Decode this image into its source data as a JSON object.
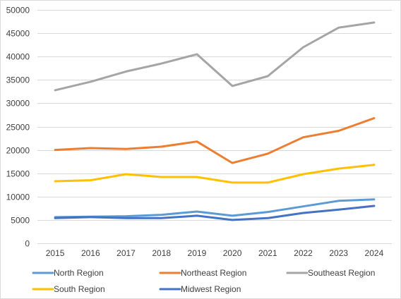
{
  "chart_data": {
    "type": "line",
    "title": "",
    "xlabel": "",
    "ylabel": "",
    "categories": [
      "2015",
      "2016",
      "2017",
      "2018",
      "2019",
      "2020",
      "2021",
      "2022",
      "2023",
      "2024"
    ],
    "ylim": [
      0,
      50000
    ],
    "yticks": [
      0,
      5000,
      10000,
      15000,
      20000,
      25000,
      30000,
      35000,
      40000,
      45000,
      50000
    ],
    "grid": true,
    "legend_position": "bottom",
    "series": [
      {
        "name": "North Region",
        "color": "#5b9bd5",
        "values": [
          5600,
          5700,
          5800,
          6100,
          6800,
          5900,
          6700,
          7900,
          9100,
          9400
        ]
      },
      {
        "name": "Northeast Region",
        "color": "#ed7d31",
        "values": [
          20000,
          20400,
          20200,
          20700,
          21800,
          17200,
          19200,
          22700,
          24100,
          26800
        ]
      },
      {
        "name": "Southeast Region",
        "color": "#a5a5a5",
        "values": [
          32800,
          34600,
          36800,
          38500,
          40500,
          33700,
          35800,
          42000,
          46200,
          47300
        ]
      },
      {
        "name": "South Region",
        "color": "#ffc000",
        "values": [
          13300,
          13500,
          14800,
          14200,
          14200,
          13000,
          13000,
          14800,
          16000,
          16800
        ]
      },
      {
        "name": "Midwest Region",
        "color": "#4472c4",
        "values": [
          5400,
          5600,
          5400,
          5400,
          5900,
          5000,
          5400,
          6500,
          7200,
          8000
        ]
      }
    ]
  }
}
